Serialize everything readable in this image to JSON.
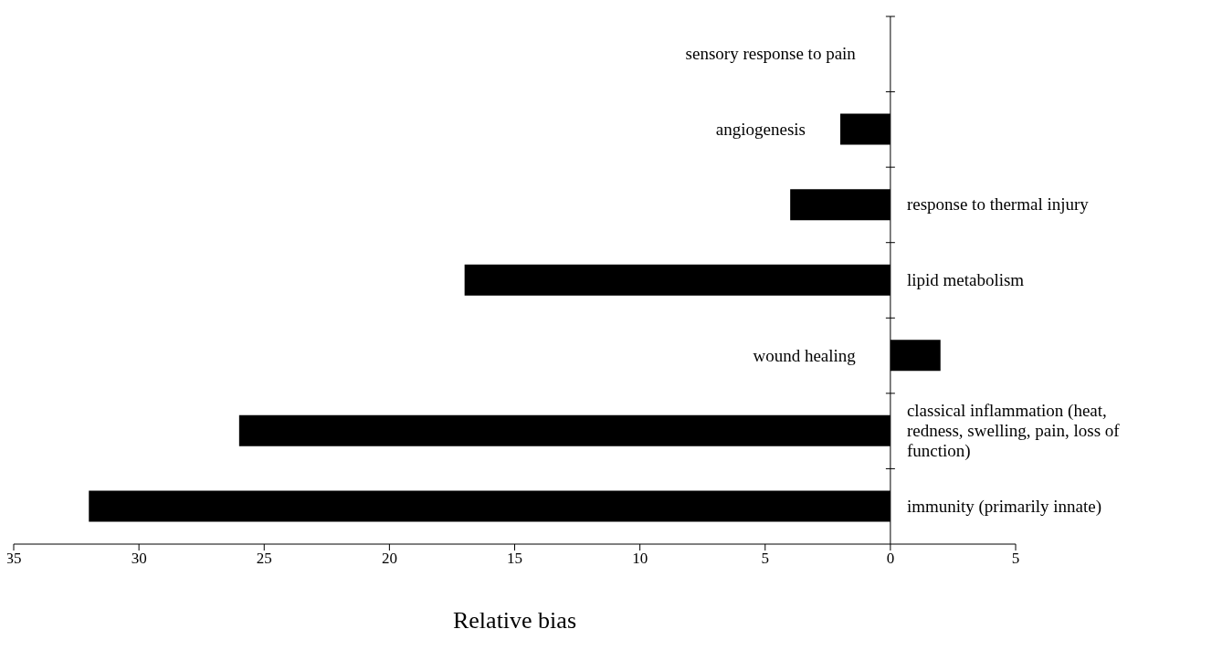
{
  "chart_data": {
    "type": "bar",
    "orientation": "horizontal",
    "xlabel": "Relative bias",
    "categories": [
      "sensory response to pain",
      "angiogenesis",
      "response to thermal injury",
      "lipid metabolism",
      "wound healing",
      "classical inflammation (heat, redness, swelling, pain, loss of function)",
      "immunity (primarily innate)"
    ],
    "values": [
      0,
      -2,
      -4,
      -17,
      2,
      -26,
      -32
    ],
    "color": "#000000",
    "xlim": [
      -35,
      5
    ],
    "xticks": [
      {
        "value": -35,
        "label": "35"
      },
      {
        "value": -30,
        "label": "30"
      },
      {
        "value": -25,
        "label": "25"
      },
      {
        "value": -20,
        "label": "20"
      },
      {
        "value": -15,
        "label": "15"
      },
      {
        "value": -10,
        "label": "10"
      },
      {
        "value": -5,
        "label": "5"
      },
      0,
      5
    ]
  }
}
